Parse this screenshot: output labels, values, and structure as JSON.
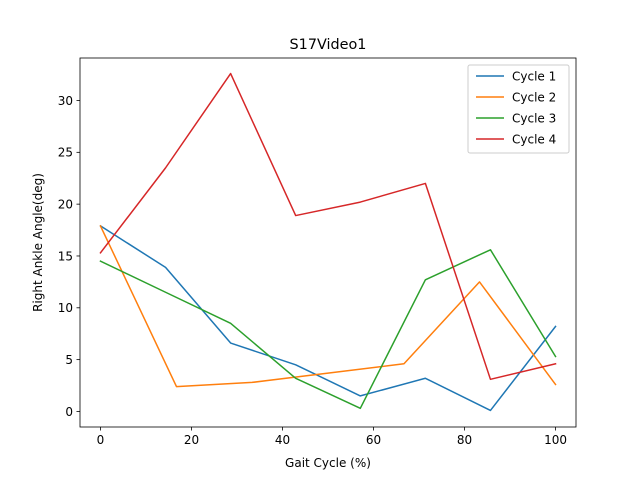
{
  "chart_data": {
    "type": "line",
    "title": "S17Video1",
    "xlabel": "Gait Cycle (%)",
    "ylabel": "Right Ankle Angle(deg)",
    "xlim": [
      -4.5,
      104.5
    ],
    "ylim": [
      -1.5,
      34.1
    ],
    "xticks": [
      0,
      20,
      40,
      60,
      80,
      100
    ],
    "yticks": [
      0,
      5,
      10,
      15,
      20,
      25,
      30
    ],
    "grid": false,
    "legend_position": "top-right",
    "series": [
      {
        "name": "Cycle 1",
        "color": "#1f77b4",
        "x": [
          0,
          14.3,
          28.6,
          42.9,
          57.1,
          71.4,
          85.7,
          100
        ],
        "y": [
          17.9,
          13.9,
          6.6,
          4.5,
          1.5,
          3.2,
          0.1,
          8.2
        ]
      },
      {
        "name": "Cycle 2",
        "color": "#ff7f0e",
        "x": [
          0,
          16.7,
          33.3,
          50,
          66.7,
          83.3,
          100
        ],
        "y": [
          17.9,
          2.4,
          2.8,
          3.7,
          4.6,
          12.5,
          2.6
        ]
      },
      {
        "name": "Cycle 3",
        "color": "#2ca02c",
        "x": [
          0,
          14.3,
          28.6,
          42.9,
          57.1,
          71.4,
          85.7,
          100
        ],
        "y": [
          14.5,
          11.5,
          8.5,
          3.2,
          0.3,
          12.7,
          15.6,
          5.3
        ]
      },
      {
        "name": "Cycle 4",
        "color": "#d62728",
        "x": [
          0,
          14.3,
          28.6,
          42.9,
          57.1,
          71.4,
          85.7,
          100
        ],
        "y": [
          15.3,
          23.5,
          32.6,
          18.9,
          20.2,
          22.0,
          3.1,
          4.6
        ]
      }
    ]
  }
}
